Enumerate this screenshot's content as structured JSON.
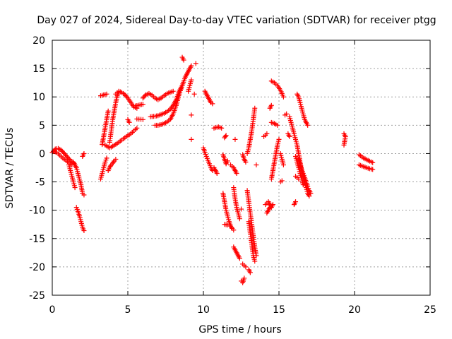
{
  "chart_data": {
    "type": "scatter",
    "title": "Day 027 of 2024, Sidereal Day-to-day VTEC variation (SDTVAR) for receiver ptgg",
    "xlabel": "GPS time / hours",
    "ylabel": "SDTVAR / TECUs",
    "xlim": [
      0,
      25
    ],
    "ylim": [
      -25,
      20
    ],
    "xticks": [
      0,
      5,
      10,
      15,
      20,
      25
    ],
    "yticks": [
      -25,
      -20,
      -15,
      -10,
      -5,
      0,
      5,
      10,
      15,
      20
    ],
    "grid": true,
    "marker": "+",
    "colors": {
      "points": "#ff0000",
      "grid": "#a0a0a0",
      "axes": "#000000"
    },
    "tracks": [
      [
        [
          0.0,
          0.2
        ],
        [
          0.2,
          0.8
        ],
        [
          0.4,
          0.9
        ],
        [
          0.6,
          0.6
        ],
        [
          0.8,
          0.0
        ],
        [
          1.0,
          -0.6
        ],
        [
          1.2,
          -1.2
        ],
        [
          1.4,
          -1.6
        ]
      ],
      [
        [
          0.1,
          0.4
        ],
        [
          0.3,
          0.2
        ],
        [
          0.5,
          -0.3
        ],
        [
          0.7,
          -0.8
        ],
        [
          0.9,
          -1.2
        ],
        [
          1.1,
          -1.6
        ],
        [
          1.3,
          -2.0
        ]
      ],
      [
        [
          1.1,
          -2.0
        ],
        [
          1.2,
          -3.0
        ],
        [
          1.3,
          -4.0
        ],
        [
          1.4,
          -5.0
        ],
        [
          1.5,
          -6.0
        ]
      ],
      [
        [
          1.4,
          -1.5
        ],
        [
          1.6,
          -2.5
        ],
        [
          1.7,
          -3.5
        ],
        [
          1.8,
          -4.5
        ],
        [
          1.9,
          -5.5
        ],
        [
          2.0,
          -7.0
        ],
        [
          2.1,
          -7.3
        ]
      ],
      [
        [
          1.6,
          -9.5
        ],
        [
          1.7,
          -10.2
        ],
        [
          1.8,
          -11.0
        ],
        [
          1.9,
          -12.0
        ],
        [
          2.0,
          -13.0
        ],
        [
          2.1,
          -13.6
        ]
      ],
      [
        [
          2.0,
          -0.5
        ],
        [
          2.1,
          0.0
        ]
      ],
      [
        [
          3.2,
          -4.5
        ],
        [
          3.3,
          -3.5
        ],
        [
          3.4,
          -2.5
        ],
        [
          3.5,
          -1.5
        ],
        [
          3.6,
          -0.8
        ]
      ],
      [
        [
          3.3,
          1.6
        ],
        [
          3.4,
          3.0
        ],
        [
          3.5,
          4.5
        ],
        [
          3.6,
          6.0
        ],
        [
          3.7,
          7.5
        ]
      ],
      [
        [
          3.7,
          -3.0
        ],
        [
          3.8,
          -2.4
        ],
        [
          3.9,
          -2.0
        ],
        [
          4.0,
          -1.7
        ],
        [
          4.1,
          -1.3
        ],
        [
          4.2,
          -1.0
        ]
      ],
      [
        [
          3.5,
          1.5
        ],
        [
          3.8,
          1.0
        ],
        [
          4.0,
          1.3
        ],
        [
          4.3,
          1.8
        ],
        [
          4.6,
          2.4
        ],
        [
          4.9,
          3.0
        ],
        [
          5.2,
          3.5
        ],
        [
          5.4,
          4.0
        ],
        [
          5.6,
          4.5
        ]
      ],
      [
        [
          3.8,
          2.0
        ],
        [
          3.9,
          4.0
        ],
        [
          4.0,
          6.0
        ],
        [
          4.1,
          7.5
        ],
        [
          4.2,
          9.0
        ],
        [
          4.3,
          10.2
        ],
        [
          4.4,
          10.8
        ]
      ],
      [
        [
          4.2,
          10.5
        ],
        [
          4.4,
          11.0
        ],
        [
          4.6,
          10.8
        ],
        [
          4.8,
          10.4
        ],
        [
          5.0,
          9.8
        ],
        [
          5.2,
          9.0
        ],
        [
          5.4,
          8.2
        ],
        [
          5.6,
          8.0
        ]
      ],
      [
        [
          3.2,
          10.2
        ],
        [
          3.6,
          10.5
        ]
      ],
      [
        [
          5.0,
          6.0
        ],
        [
          5.1,
          5.5
        ]
      ],
      [
        [
          5.5,
          8.4
        ],
        [
          5.8,
          8.6
        ],
        [
          6.0,
          8.7
        ]
      ],
      [
        [
          6.0,
          9.8
        ],
        [
          6.2,
          10.4
        ],
        [
          6.4,
          10.6
        ],
        [
          6.6,
          10.3
        ],
        [
          6.8,
          9.8
        ],
        [
          7.0,
          9.5
        ],
        [
          7.2,
          9.8
        ],
        [
          7.4,
          10.2
        ],
        [
          7.6,
          10.6
        ],
        [
          7.8,
          10.8
        ],
        [
          8.0,
          11.0
        ]
      ],
      [
        [
          6.5,
          6.5
        ],
        [
          6.8,
          6.6
        ],
        [
          7.0,
          6.7
        ],
        [
          7.2,
          6.9
        ],
        [
          7.4,
          7.1
        ],
        [
          7.6,
          7.4
        ],
        [
          7.8,
          7.8
        ],
        [
          8.0,
          8.5
        ],
        [
          8.2,
          9.5
        ],
        [
          8.4,
          11.0
        ],
        [
          8.6,
          12.0
        ],
        [
          8.8,
          13.5
        ],
        [
          9.0,
          14.5
        ],
        [
          9.2,
          15.5
        ]
      ],
      [
        [
          6.8,
          5.0
        ],
        [
          7.0,
          5.0
        ],
        [
          7.2,
          5.1
        ],
        [
          7.4,
          5.3
        ],
        [
          7.6,
          5.6
        ],
        [
          7.8,
          6.0
        ],
        [
          8.0,
          7.0
        ],
        [
          8.2,
          8.5
        ],
        [
          8.4,
          10.5
        ],
        [
          8.6,
          12.0
        ]
      ],
      [
        [
          5.6,
          6.1
        ],
        [
          6.0,
          6.0
        ]
      ],
      [
        [
          8.6,
          17.0
        ],
        [
          8.7,
          16.5
        ]
      ],
      [
        [
          9.5,
          15.9
        ]
      ],
      [
        [
          9.2,
          13.0
        ],
        [
          9.1,
          12.0
        ],
        [
          9.0,
          11.0
        ]
      ],
      [
        [
          9.4,
          10.5
        ]
      ],
      [
        [
          9.2,
          6.8
        ]
      ],
      [
        [
          9.2,
          2.5
        ]
      ],
      [
        [
          10.1,
          11.0
        ],
        [
          10.2,
          10.5
        ],
        [
          10.3,
          10.0
        ],
        [
          10.4,
          9.5
        ],
        [
          10.5,
          9.0
        ]
      ],
      [
        [
          10.6,
          8.8
        ]
      ],
      [
        [
          10.0,
          1.0
        ],
        [
          10.1,
          0.2
        ],
        [
          10.2,
          -0.5
        ],
        [
          10.3,
          -1.2
        ],
        [
          10.4,
          -1.8
        ],
        [
          10.5,
          -2.5
        ],
        [
          10.6,
          -3.0
        ]
      ],
      [
        [
          10.7,
          -2.5
        ],
        [
          10.8,
          -3.0
        ],
        [
          10.9,
          -3.5
        ]
      ],
      [
        [
          10.7,
          4.5
        ],
        [
          11.0,
          4.7
        ],
        [
          11.2,
          4.5
        ]
      ],
      [
        [
          11.3,
          -0.2
        ],
        [
          11.4,
          -1.0
        ],
        [
          11.5,
          -1.8
        ],
        [
          11.6,
          -1.3
        ]
      ],
      [
        [
          11.4,
          2.8
        ],
        [
          11.5,
          3.2
        ]
      ],
      [
        [
          11.3,
          -7.0
        ],
        [
          11.4,
          -8.5
        ],
        [
          11.5,
          -10.0
        ],
        [
          11.6,
          -11.0
        ],
        [
          11.7,
          -12.0
        ],
        [
          11.8,
          -12.8
        ],
        [
          11.9,
          -13.2
        ],
        [
          12.0,
          -13.5
        ]
      ],
      [
        [
          11.4,
          -12.5
        ],
        [
          11.6,
          -12.6
        ]
      ],
      [
        [
          11.8,
          -2.0
        ],
        [
          12.0,
          -2.5
        ],
        [
          12.1,
          -3.0
        ],
        [
          12.2,
          -3.5
        ]
      ],
      [
        [
          12.0,
          -6.0
        ],
        [
          12.1,
          -8.0
        ],
        [
          12.2,
          -9.5
        ],
        [
          12.3,
          -10.5
        ],
        [
          12.4,
          -11.5
        ]
      ],
      [
        [
          12.0,
          -16.5
        ],
        [
          12.1,
          -17.0
        ],
        [
          12.2,
          -17.5
        ],
        [
          12.3,
          -18.0
        ],
        [
          12.4,
          -18.5
        ]
      ],
      [
        [
          12.1,
          2.5
        ]
      ],
      [
        [
          12.6,
          -0.2
        ],
        [
          12.7,
          -1.0
        ],
        [
          12.8,
          -1.5
        ]
      ],
      [
        [
          12.5,
          -9.8
        ]
      ],
      [
        [
          12.6,
          -19.5
        ],
        [
          12.8,
          -20.0
        ]
      ],
      [
        [
          12.5,
          -22.5
        ],
        [
          12.6,
          -22.8
        ],
        [
          12.7,
          -22.0
        ]
      ],
      [
        [
          12.9,
          -6.5
        ],
        [
          13.0,
          -8.5
        ],
        [
          13.1,
          -10.5
        ],
        [
          13.2,
          -12.5
        ],
        [
          13.3,
          -14.5
        ],
        [
          13.4,
          -16.5
        ],
        [
          13.5,
          -18.0
        ]
      ],
      [
        [
          13.0,
          -12.0
        ],
        [
          13.1,
          -14.0
        ],
        [
          13.2,
          -16.0
        ],
        [
          13.3,
          -18.0
        ],
        [
          13.4,
          -19.0
        ]
      ],
      [
        [
          12.9,
          0.0
        ],
        [
          13.0,
          1.0
        ],
        [
          13.1,
          2.5
        ],
        [
          13.2,
          4.0
        ],
        [
          13.3,
          6.0
        ],
        [
          13.4,
          8.0
        ]
      ],
      [
        [
          13.0,
          -20.5
        ],
        [
          13.1,
          -21.0
        ]
      ],
      [
        [
          13.5,
          -2.0
        ]
      ],
      [
        [
          14.0,
          3.0
        ],
        [
          14.2,
          3.5
        ]
      ],
      [
        [
          14.1,
          -9.0
        ],
        [
          14.3,
          -8.5
        ],
        [
          14.5,
          -9.5
        ],
        [
          14.6,
          -9.0
        ]
      ],
      [
        [
          14.2,
          -10.5
        ],
        [
          14.4,
          -9.5
        ]
      ],
      [
        [
          14.4,
          8.0
        ],
        [
          14.5,
          8.5
        ]
      ],
      [
        [
          14.5,
          5.5
        ],
        [
          14.7,
          5.3
        ],
        [
          14.9,
          5.0
        ]
      ],
      [
        [
          14.5,
          12.8
        ],
        [
          14.7,
          12.5
        ],
        [
          14.9,
          12.0
        ],
        [
          15.1,
          11.2
        ],
        [
          15.3,
          10.0
        ]
      ],
      [
        [
          14.5,
          -4.5
        ],
        [
          14.6,
          -3.0
        ],
        [
          14.7,
          -1.5
        ],
        [
          14.8,
          0.0
        ],
        [
          14.9,
          1.5
        ],
        [
          15.0,
          2.5
        ]
      ],
      [
        [
          15.1,
          0.0
        ],
        [
          15.2,
          -1.0
        ],
        [
          15.3,
          -2.0
        ]
      ],
      [
        [
          15.1,
          -5.0
        ],
        [
          15.2,
          -4.8
        ]
      ],
      [
        [
          15.4,
          6.8
        ],
        [
          15.5,
          7.0
        ]
      ],
      [
        [
          15.7,
          6.5
        ],
        [
          15.8,
          5.5
        ],
        [
          15.9,
          4.5
        ],
        [
          16.0,
          3.5
        ],
        [
          16.1,
          2.5
        ],
        [
          16.2,
          1.5
        ],
        [
          16.3,
          0.0
        ],
        [
          16.4,
          -1.5
        ],
        [
          16.5,
          -3.0
        ],
        [
          16.6,
          -4.0
        ],
        [
          16.7,
          -5.0
        ],
        [
          16.8,
          -6.0
        ],
        [
          16.9,
          -7.0
        ],
        [
          17.0,
          -7.5
        ]
      ],
      [
        [
          16.2,
          10.5
        ],
        [
          16.3,
          10.0
        ],
        [
          16.4,
          9.0
        ],
        [
          16.5,
          8.0
        ],
        [
          16.6,
          7.0
        ],
        [
          16.7,
          6.0
        ],
        [
          16.8,
          5.5
        ],
        [
          16.9,
          5.0
        ]
      ],
      [
        [
          16.3,
          -1.0
        ],
        [
          16.4,
          -2.0
        ],
        [
          16.5,
          -2.8
        ],
        [
          16.6,
          -3.5
        ],
        [
          16.7,
          -4.2
        ],
        [
          16.8,
          -5.0
        ],
        [
          16.9,
          -5.8
        ],
        [
          17.0,
          -6.5
        ],
        [
          17.1,
          -7.0
        ]
      ],
      [
        [
          16.1,
          -0.5
        ],
        [
          16.2,
          -1.5
        ],
        [
          16.3,
          -2.5
        ],
        [
          16.4,
          -3.5
        ],
        [
          16.5,
          -4.5
        ],
        [
          16.6,
          -5.5
        ]
      ],
      [
        [
          16.1,
          -4.0
        ],
        [
          16.3,
          -4.5
        ]
      ],
      [
        [
          16.0,
          -9.0
        ],
        [
          16.1,
          -8.5
        ]
      ],
      [
        [
          15.6,
          3.5
        ],
        [
          15.7,
          3.0
        ]
      ],
      [
        [
          19.3,
          3.5
        ],
        [
          19.4,
          3.0
        ],
        [
          19.3,
          1.5
        ]
      ],
      [
        [
          20.3,
          -0.2
        ],
        [
          20.6,
          -0.8
        ],
        [
          20.9,
          -1.2
        ],
        [
          21.2,
          -1.6
        ]
      ],
      [
        [
          20.3,
          -2.0
        ],
        [
          20.6,
          -2.3
        ],
        [
          20.9,
          -2.6
        ],
        [
          21.2,
          -2.8
        ]
      ]
    ]
  }
}
